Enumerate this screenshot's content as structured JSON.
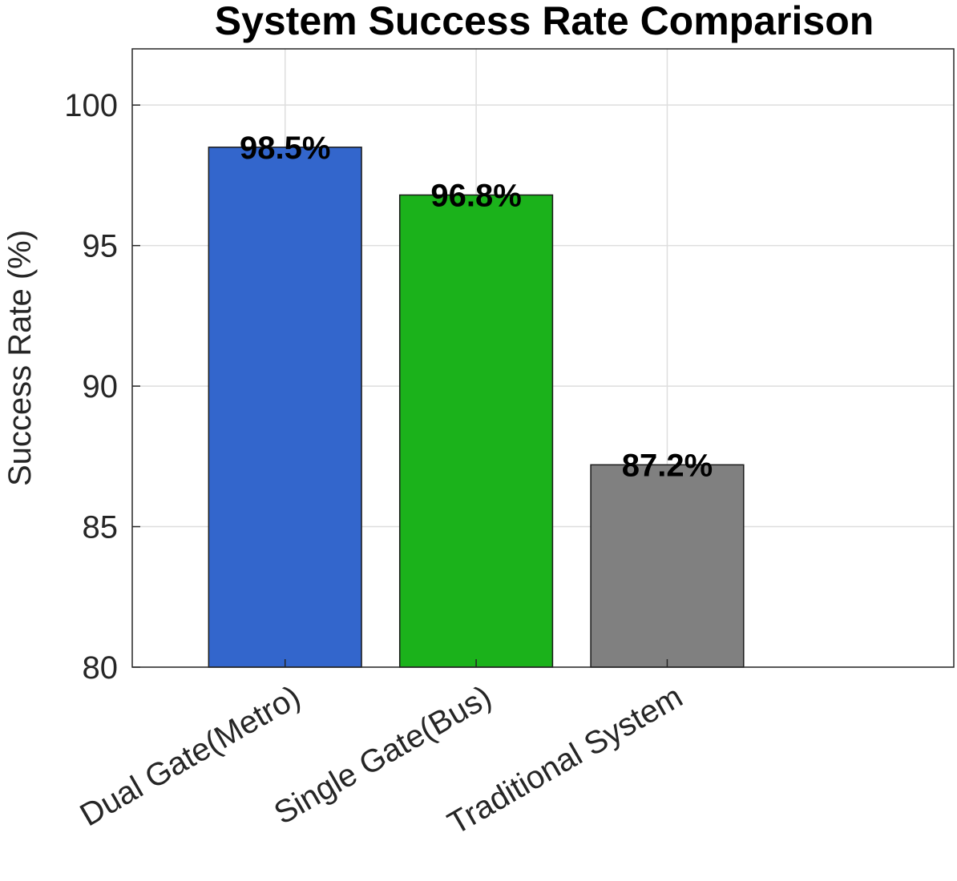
{
  "chart_data": {
    "type": "bar",
    "title": "System Success Rate Comparison",
    "xlabel": "",
    "ylabel": "Success Rate (%)",
    "categories": [
      "Dual Gate(Metro)",
      "Single Gate(Bus)",
      "Traditional System"
    ],
    "values": [
      98.5,
      96.8,
      87.2
    ],
    "data_labels": [
      "98.5%",
      "96.8%",
      "87.2%"
    ],
    "colors": [
      "#3366cc",
      "#1bb21b",
      "#808080"
    ],
    "ylim": [
      80,
      102
    ],
    "xlim": [
      0.2,
      4.5
    ],
    "yticks": [
      80,
      85,
      90,
      95,
      100
    ],
    "grid": true,
    "legend": "none"
  }
}
